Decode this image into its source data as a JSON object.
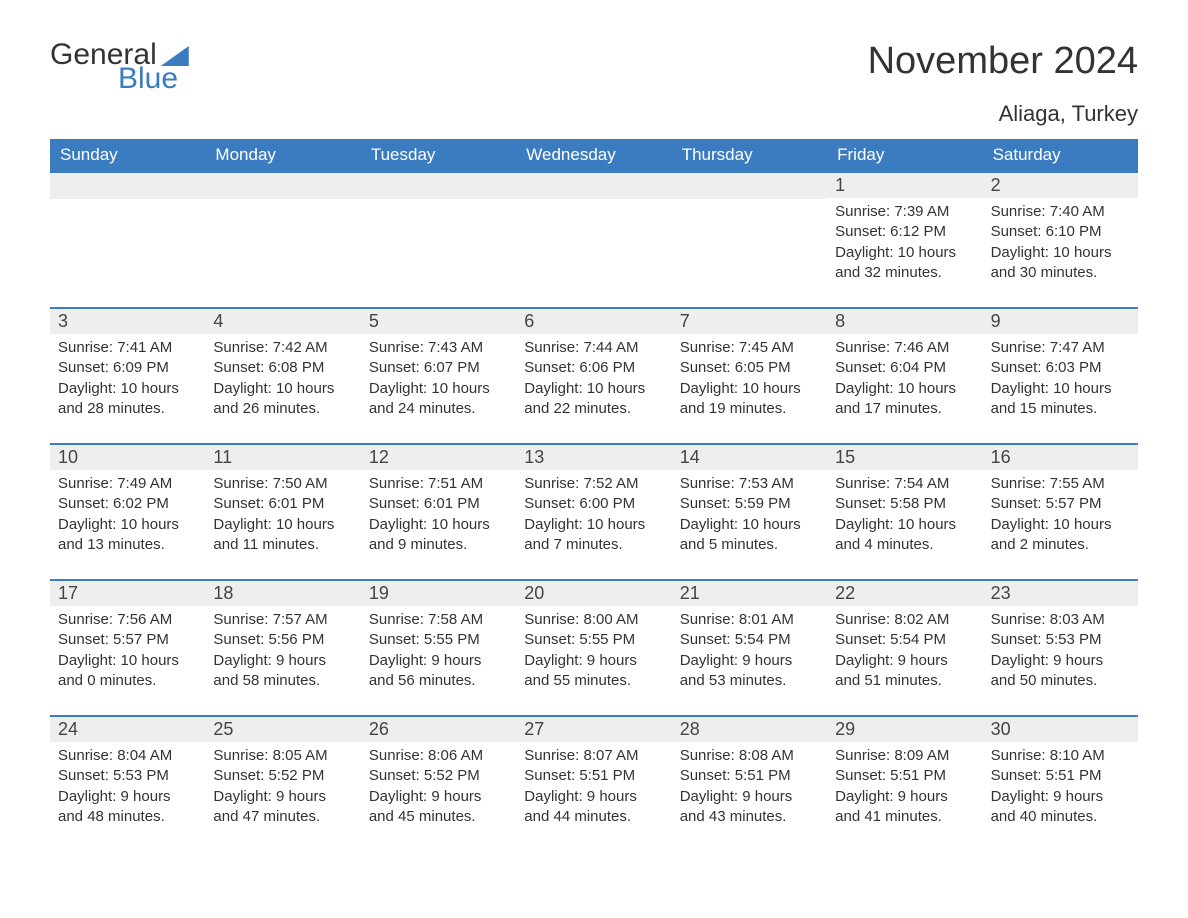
{
  "logo": {
    "text1": "General",
    "text2": "Blue"
  },
  "title": "November 2024",
  "location": "Aliaga, Turkey",
  "colors": {
    "accent": "#3b7bbf",
    "header_bg": "#3b7bbf",
    "header_text": "#ffffff",
    "daynum_bg": "#eeeeee",
    "body_text": "#333333",
    "background": "#ffffff"
  },
  "fonts": {
    "title_size_pt": 38,
    "location_size_pt": 22,
    "header_size_pt": 17,
    "daynum_size_pt": 18,
    "body_size_pt": 15
  },
  "weekdays": [
    "Sunday",
    "Monday",
    "Tuesday",
    "Wednesday",
    "Thursday",
    "Friday",
    "Saturday"
  ],
  "weeks": [
    [
      null,
      null,
      null,
      null,
      null,
      {
        "n": "1",
        "sunrise": "7:39 AM",
        "sunset": "6:12 PM",
        "dl_h": "10",
        "dl_m": "32"
      },
      {
        "n": "2",
        "sunrise": "7:40 AM",
        "sunset": "6:10 PM",
        "dl_h": "10",
        "dl_m": "30"
      }
    ],
    [
      {
        "n": "3",
        "sunrise": "7:41 AM",
        "sunset": "6:09 PM",
        "dl_h": "10",
        "dl_m": "28"
      },
      {
        "n": "4",
        "sunrise": "7:42 AM",
        "sunset": "6:08 PM",
        "dl_h": "10",
        "dl_m": "26"
      },
      {
        "n": "5",
        "sunrise": "7:43 AM",
        "sunset": "6:07 PM",
        "dl_h": "10",
        "dl_m": "24"
      },
      {
        "n": "6",
        "sunrise": "7:44 AM",
        "sunset": "6:06 PM",
        "dl_h": "10",
        "dl_m": "22"
      },
      {
        "n": "7",
        "sunrise": "7:45 AM",
        "sunset": "6:05 PM",
        "dl_h": "10",
        "dl_m": "19"
      },
      {
        "n": "8",
        "sunrise": "7:46 AM",
        "sunset": "6:04 PM",
        "dl_h": "10",
        "dl_m": "17"
      },
      {
        "n": "9",
        "sunrise": "7:47 AM",
        "sunset": "6:03 PM",
        "dl_h": "10",
        "dl_m": "15"
      }
    ],
    [
      {
        "n": "10",
        "sunrise": "7:49 AM",
        "sunset": "6:02 PM",
        "dl_h": "10",
        "dl_m": "13"
      },
      {
        "n": "11",
        "sunrise": "7:50 AM",
        "sunset": "6:01 PM",
        "dl_h": "10",
        "dl_m": "11"
      },
      {
        "n": "12",
        "sunrise": "7:51 AM",
        "sunset": "6:01 PM",
        "dl_h": "10",
        "dl_m": "9"
      },
      {
        "n": "13",
        "sunrise": "7:52 AM",
        "sunset": "6:00 PM",
        "dl_h": "10",
        "dl_m": "7"
      },
      {
        "n": "14",
        "sunrise": "7:53 AM",
        "sunset": "5:59 PM",
        "dl_h": "10",
        "dl_m": "5"
      },
      {
        "n": "15",
        "sunrise": "7:54 AM",
        "sunset": "5:58 PM",
        "dl_h": "10",
        "dl_m": "4"
      },
      {
        "n": "16",
        "sunrise": "7:55 AM",
        "sunset": "5:57 PM",
        "dl_h": "10",
        "dl_m": "2"
      }
    ],
    [
      {
        "n": "17",
        "sunrise": "7:56 AM",
        "sunset": "5:57 PM",
        "dl_h": "10",
        "dl_m": "0"
      },
      {
        "n": "18",
        "sunrise": "7:57 AM",
        "sunset": "5:56 PM",
        "dl_h": "9",
        "dl_m": "58"
      },
      {
        "n": "19",
        "sunrise": "7:58 AM",
        "sunset": "5:55 PM",
        "dl_h": "9",
        "dl_m": "56"
      },
      {
        "n": "20",
        "sunrise": "8:00 AM",
        "sunset": "5:55 PM",
        "dl_h": "9",
        "dl_m": "55"
      },
      {
        "n": "21",
        "sunrise": "8:01 AM",
        "sunset": "5:54 PM",
        "dl_h": "9",
        "dl_m": "53"
      },
      {
        "n": "22",
        "sunrise": "8:02 AM",
        "sunset": "5:54 PM",
        "dl_h": "9",
        "dl_m": "51"
      },
      {
        "n": "23",
        "sunrise": "8:03 AM",
        "sunset": "5:53 PM",
        "dl_h": "9",
        "dl_m": "50"
      }
    ],
    [
      {
        "n": "24",
        "sunrise": "8:04 AM",
        "sunset": "5:53 PM",
        "dl_h": "9",
        "dl_m": "48"
      },
      {
        "n": "25",
        "sunrise": "8:05 AM",
        "sunset": "5:52 PM",
        "dl_h": "9",
        "dl_m": "47"
      },
      {
        "n": "26",
        "sunrise": "8:06 AM",
        "sunset": "5:52 PM",
        "dl_h": "9",
        "dl_m": "45"
      },
      {
        "n": "27",
        "sunrise": "8:07 AM",
        "sunset": "5:51 PM",
        "dl_h": "9",
        "dl_m": "44"
      },
      {
        "n": "28",
        "sunrise": "8:08 AM",
        "sunset": "5:51 PM",
        "dl_h": "9",
        "dl_m": "43"
      },
      {
        "n": "29",
        "sunrise": "8:09 AM",
        "sunset": "5:51 PM",
        "dl_h": "9",
        "dl_m": "41"
      },
      {
        "n": "30",
        "sunrise": "8:10 AM",
        "sunset": "5:51 PM",
        "dl_h": "9",
        "dl_m": "40"
      }
    ]
  ],
  "labels": {
    "sunrise": "Sunrise: ",
    "sunset": "Sunset: ",
    "daylight_pre": "Daylight: ",
    "hours": " hours",
    "and": "and ",
    "minutes": " minutes."
  }
}
